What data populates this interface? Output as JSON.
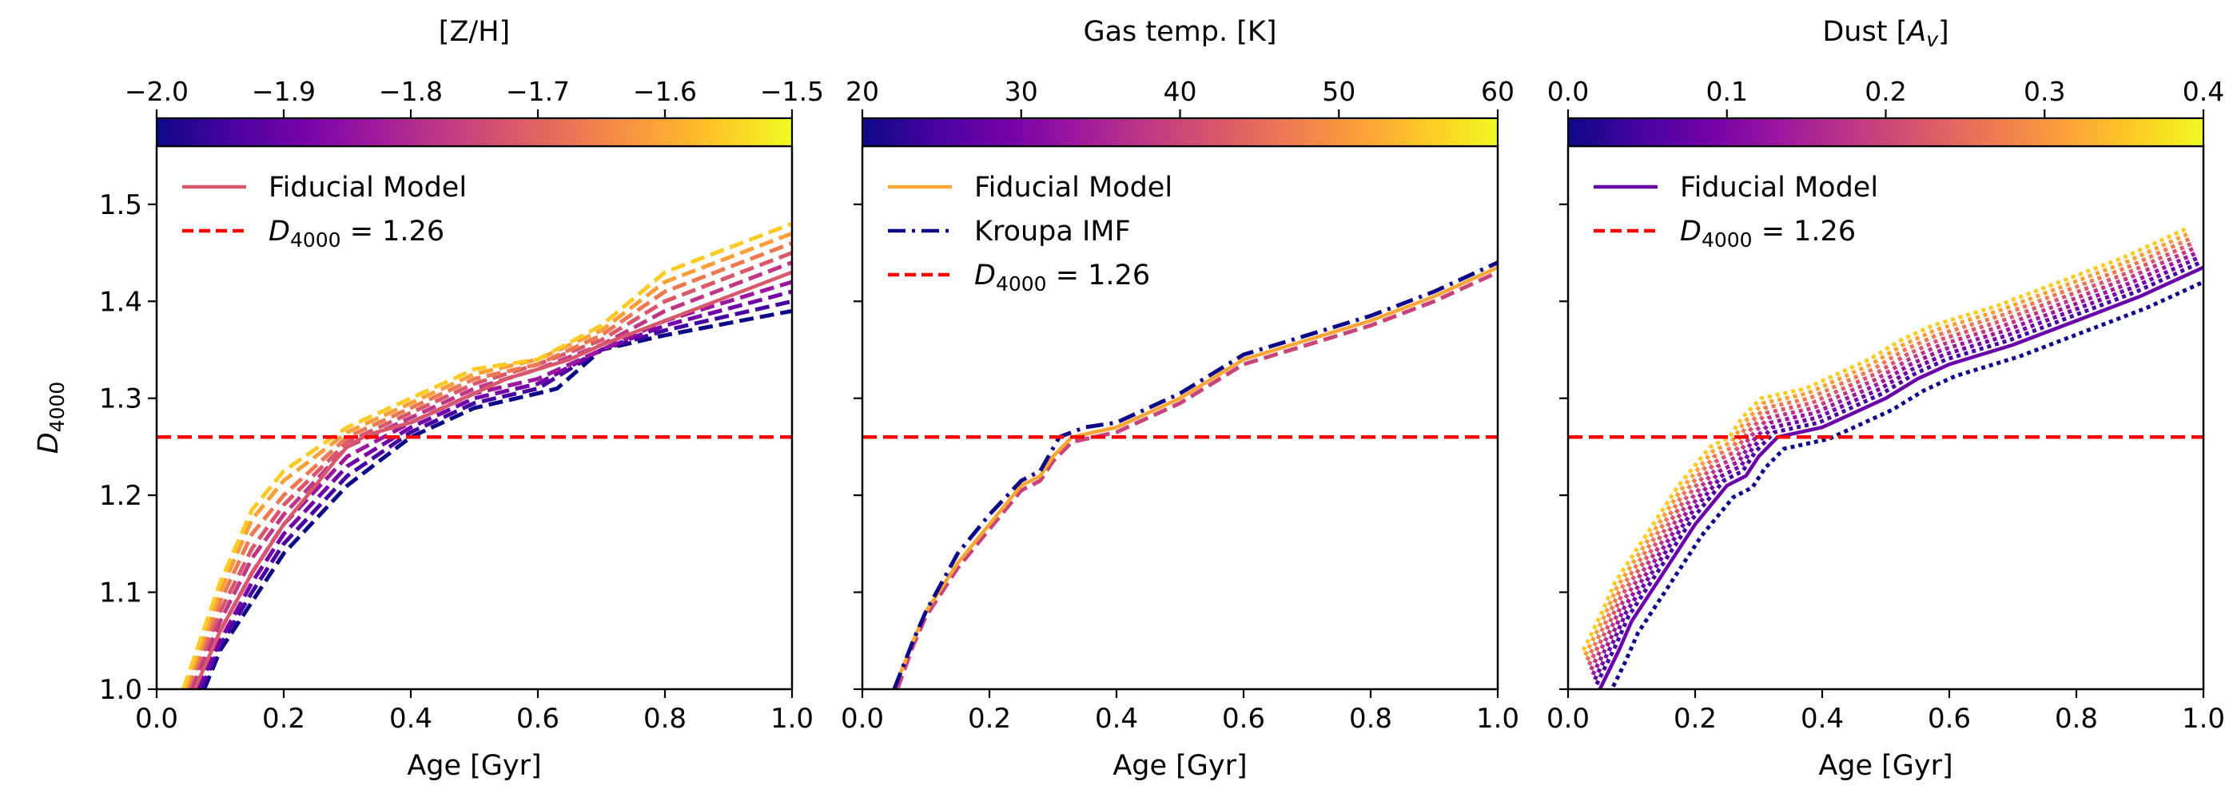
{
  "colormap": [
    "#0d0887",
    "#46039f",
    "#7201a8",
    "#9c179e",
    "#bd3786",
    "#d8576b",
    "#ed7953",
    "#fb9f3a",
    "#fdca26",
    "#f0f921"
  ],
  "colors": {
    "axes": "#000000",
    "threshold": "#ff0000",
    "kroupa": "#0d0887"
  },
  "chart_data": [
    {
      "type": "line",
      "id": "metallicity",
      "colorbar": {
        "label": "[Z/H]",
        "range": [
          -2.0,
          -1.5
        ],
        "ticks": [
          "−2.0",
          "−1.9",
          "−1.8",
          "−1.7",
          "−1.6",
          "−1.5"
        ]
      },
      "xlabel": "Age [Gyr]",
      "ylabel": "D_4000",
      "xlim": [
        0.0,
        1.0
      ],
      "ylim": [
        1.0,
        1.56
      ],
      "xticks": [
        "0.0",
        "0.2",
        "0.4",
        "0.6",
        "0.8",
        "1.0"
      ],
      "yticks": [
        "1.0",
        "1.1",
        "1.2",
        "1.3",
        "1.4",
        "1.5"
      ],
      "threshold": 1.26,
      "legend": {
        "position": "top-left",
        "entries": [
          "Fiducial Model",
          "= 1.26"
        ],
        "math_symbol": "D",
        "math_sub": "4000"
      },
      "fiducial": {
        "x": [
          0.06,
          0.08,
          0.1,
          0.15,
          0.2,
          0.25,
          0.28,
          0.3,
          0.33,
          0.4,
          0.45,
          0.5,
          0.55,
          0.6,
          0.65,
          0.7,
          0.8,
          0.9,
          1.0
        ],
        "y": [
          1.0,
          1.03,
          1.06,
          1.12,
          1.17,
          1.21,
          1.235,
          1.25,
          1.262,
          1.275,
          1.29,
          1.305,
          1.32,
          1.33,
          1.34,
          1.355,
          1.38,
          1.405,
          1.43
        ]
      },
      "fiducial_color": "#d8576b",
      "dashed_family": [
        {
          "x": [
            0.075,
            0.1,
            0.15,
            0.2,
            0.3,
            0.4,
            0.5,
            0.6,
            0.63,
            0.7,
            0.8,
            1.0
          ],
          "y": [
            1.0,
            1.04,
            1.09,
            1.14,
            1.21,
            1.26,
            1.29,
            1.305,
            1.31,
            1.35,
            1.365,
            1.39
          ]
        },
        {
          "x": [
            0.07,
            0.1,
            0.15,
            0.2,
            0.3,
            0.4,
            0.5,
            0.6,
            0.7,
            0.8,
            1.0
          ],
          "y": [
            1.0,
            1.045,
            1.1,
            1.15,
            1.22,
            1.265,
            1.295,
            1.31,
            1.35,
            1.37,
            1.4
          ]
        },
        {
          "x": [
            0.065,
            0.1,
            0.15,
            0.2,
            0.3,
            0.4,
            0.5,
            0.6,
            0.7,
            0.8,
            1.0
          ],
          "y": [
            1.0,
            1.05,
            1.11,
            1.16,
            1.23,
            1.27,
            1.3,
            1.315,
            1.35,
            1.375,
            1.41
          ]
        },
        {
          "x": [
            0.06,
            0.1,
            0.15,
            0.2,
            0.3,
            0.4,
            0.5,
            0.6,
            0.7,
            0.8,
            1.0
          ],
          "y": [
            1.0,
            1.06,
            1.12,
            1.17,
            1.24,
            1.275,
            1.305,
            1.32,
            1.35,
            1.38,
            1.42
          ]
        },
        {
          "x": [
            0.055,
            0.1,
            0.15,
            0.2,
            0.3,
            0.4,
            0.5,
            0.6,
            0.7,
            0.8,
            1.0
          ],
          "y": [
            1.0,
            1.07,
            1.135,
            1.18,
            1.25,
            1.28,
            1.31,
            1.33,
            1.355,
            1.39,
            1.44
          ]
        },
        {
          "x": [
            0.05,
            0.1,
            0.15,
            0.2,
            0.3,
            0.4,
            0.5,
            0.6,
            0.7,
            0.8,
            1.0
          ],
          "y": [
            1.0,
            1.08,
            1.145,
            1.19,
            1.255,
            1.285,
            1.315,
            1.335,
            1.36,
            1.4,
            1.45
          ]
        },
        {
          "x": [
            0.048,
            0.1,
            0.15,
            0.2,
            0.3,
            0.4,
            0.5,
            0.6,
            0.7,
            0.8,
            1.0
          ],
          "y": [
            1.0,
            1.09,
            1.16,
            1.2,
            1.26,
            1.29,
            1.32,
            1.335,
            1.365,
            1.41,
            1.46
          ]
        },
        {
          "x": [
            0.045,
            0.1,
            0.15,
            0.2,
            0.3,
            0.4,
            0.5,
            0.6,
            0.7,
            0.8,
            1.0
          ],
          "y": [
            1.0,
            1.1,
            1.175,
            1.215,
            1.265,
            1.295,
            1.325,
            1.34,
            1.37,
            1.42,
            1.47
          ]
        },
        {
          "x": [
            0.042,
            0.1,
            0.15,
            0.2,
            0.3,
            0.4,
            0.5,
            0.6,
            0.7,
            0.8,
            1.0
          ],
          "y": [
            1.0,
            1.11,
            1.185,
            1.225,
            1.27,
            1.3,
            1.33,
            1.34,
            1.375,
            1.43,
            1.48
          ]
        }
      ]
    },
    {
      "type": "line",
      "id": "gas_temperature",
      "colorbar": {
        "label": "Gas temp. [K]",
        "range": [
          20,
          60
        ],
        "ticks": [
          "20",
          "30",
          "40",
          "50",
          "60"
        ]
      },
      "xlabel": "Age [Gyr]",
      "ylabel": "",
      "xlim": [
        0.0,
        1.0
      ],
      "ylim": [
        1.0,
        1.56
      ],
      "xticks": [
        "0.0",
        "0.2",
        "0.4",
        "0.6",
        "0.8",
        "1.0"
      ],
      "yticks": [
        "1.0",
        "1.1",
        "1.2",
        "1.3",
        "1.4",
        "1.5"
      ],
      "threshold": 1.26,
      "legend": {
        "position": "top-left",
        "entries": [
          "Fiducial Model",
          "Kroupa IMF",
          "= 1.26"
        ],
        "math_symbol": "D",
        "math_sub": "4000"
      },
      "fiducial": {
        "x": [
          0.05,
          0.08,
          0.1,
          0.15,
          0.2,
          0.25,
          0.28,
          0.3,
          0.33,
          0.4,
          0.45,
          0.5,
          0.55,
          0.6,
          0.7,
          0.8,
          0.9,
          1.0
        ],
        "y": [
          1.0,
          1.05,
          1.08,
          1.13,
          1.17,
          1.21,
          1.22,
          1.24,
          1.26,
          1.27,
          1.285,
          1.3,
          1.32,
          1.34,
          1.36,
          1.38,
          1.405,
          1.435
        ]
      },
      "fiducial_color": "#fca636",
      "kroupa": {
        "x": [
          0.05,
          0.08,
          0.1,
          0.15,
          0.2,
          0.25,
          0.28,
          0.31,
          0.35,
          0.4,
          0.45,
          0.5,
          0.55,
          0.6,
          0.7,
          0.8,
          0.9,
          1.0
        ],
        "y": [
          1.0,
          1.05,
          1.08,
          1.14,
          1.18,
          1.215,
          1.225,
          1.26,
          1.27,
          1.275,
          1.29,
          1.305,
          1.325,
          1.345,
          1.365,
          1.385,
          1.41,
          1.44
        ]
      },
      "dashed_family": [
        {
          "x": [
            0.055,
            0.08,
            0.1,
            0.15,
            0.2,
            0.25,
            0.28,
            0.3,
            0.33,
            0.4,
            0.45,
            0.5,
            0.55,
            0.6,
            0.7,
            0.8,
            0.9,
            1.0
          ],
          "y": [
            1.0,
            1.045,
            1.075,
            1.125,
            1.165,
            1.205,
            1.215,
            1.235,
            1.255,
            1.265,
            1.28,
            1.295,
            1.315,
            1.335,
            1.355,
            1.375,
            1.4,
            1.43
          ]
        }
      ]
    },
    {
      "type": "line",
      "id": "dust",
      "colorbar": {
        "label": "Dust [",
        "label_math": "A",
        "label_sub": "v",
        "label_end": "]",
        "range": [
          0.0,
          0.4
        ],
        "ticks": [
          "0.0",
          "0.1",
          "0.2",
          "0.3",
          "0.4"
        ]
      },
      "xlabel": "Age [Gyr]",
      "ylabel": "",
      "xlim": [
        0.0,
        1.0
      ],
      "ylim": [
        1.0,
        1.56
      ],
      "xticks": [
        "0.0",
        "0.2",
        "0.4",
        "0.6",
        "0.8",
        "1.0"
      ],
      "yticks": [
        "1.0",
        "1.1",
        "1.2",
        "1.3",
        "1.4",
        "1.5"
      ],
      "threshold": 1.26,
      "legend": {
        "position": "top-left",
        "entries": [
          "Fiducial Model",
          "= 1.26"
        ],
        "math_symbol": "D",
        "math_sub": "4000"
      },
      "fiducial": {
        "x": [
          0.05,
          0.08,
          0.1,
          0.15,
          0.2,
          0.25,
          0.28,
          0.3,
          0.33,
          0.4,
          0.45,
          0.5,
          0.55,
          0.6,
          0.7,
          0.8,
          0.9,
          1.0
        ],
        "y": [
          1.0,
          1.04,
          1.07,
          1.12,
          1.17,
          1.21,
          1.22,
          1.24,
          1.26,
          1.27,
          1.285,
          1.3,
          1.32,
          1.335,
          1.355,
          1.38,
          1.405,
          1.435
        ]
      },
      "fiducial_color": "#6a00a8",
      "dotted_family": [
        {
          "dy": -0.012,
          "dx": 0.01
        },
        {
          "dy": 0.005,
          "dx": -0.005
        },
        {
          "dy": 0.01,
          "dx": -0.008
        },
        {
          "dy": 0.015,
          "dx": -0.011
        },
        {
          "dy": 0.02,
          "dx": -0.014
        },
        {
          "dy": 0.025,
          "dx": -0.017
        },
        {
          "dy": 0.03,
          "dx": -0.02
        },
        {
          "dy": 0.035,
          "dx": -0.023
        },
        {
          "dy": 0.04,
          "dx": -0.026
        }
      ]
    }
  ]
}
